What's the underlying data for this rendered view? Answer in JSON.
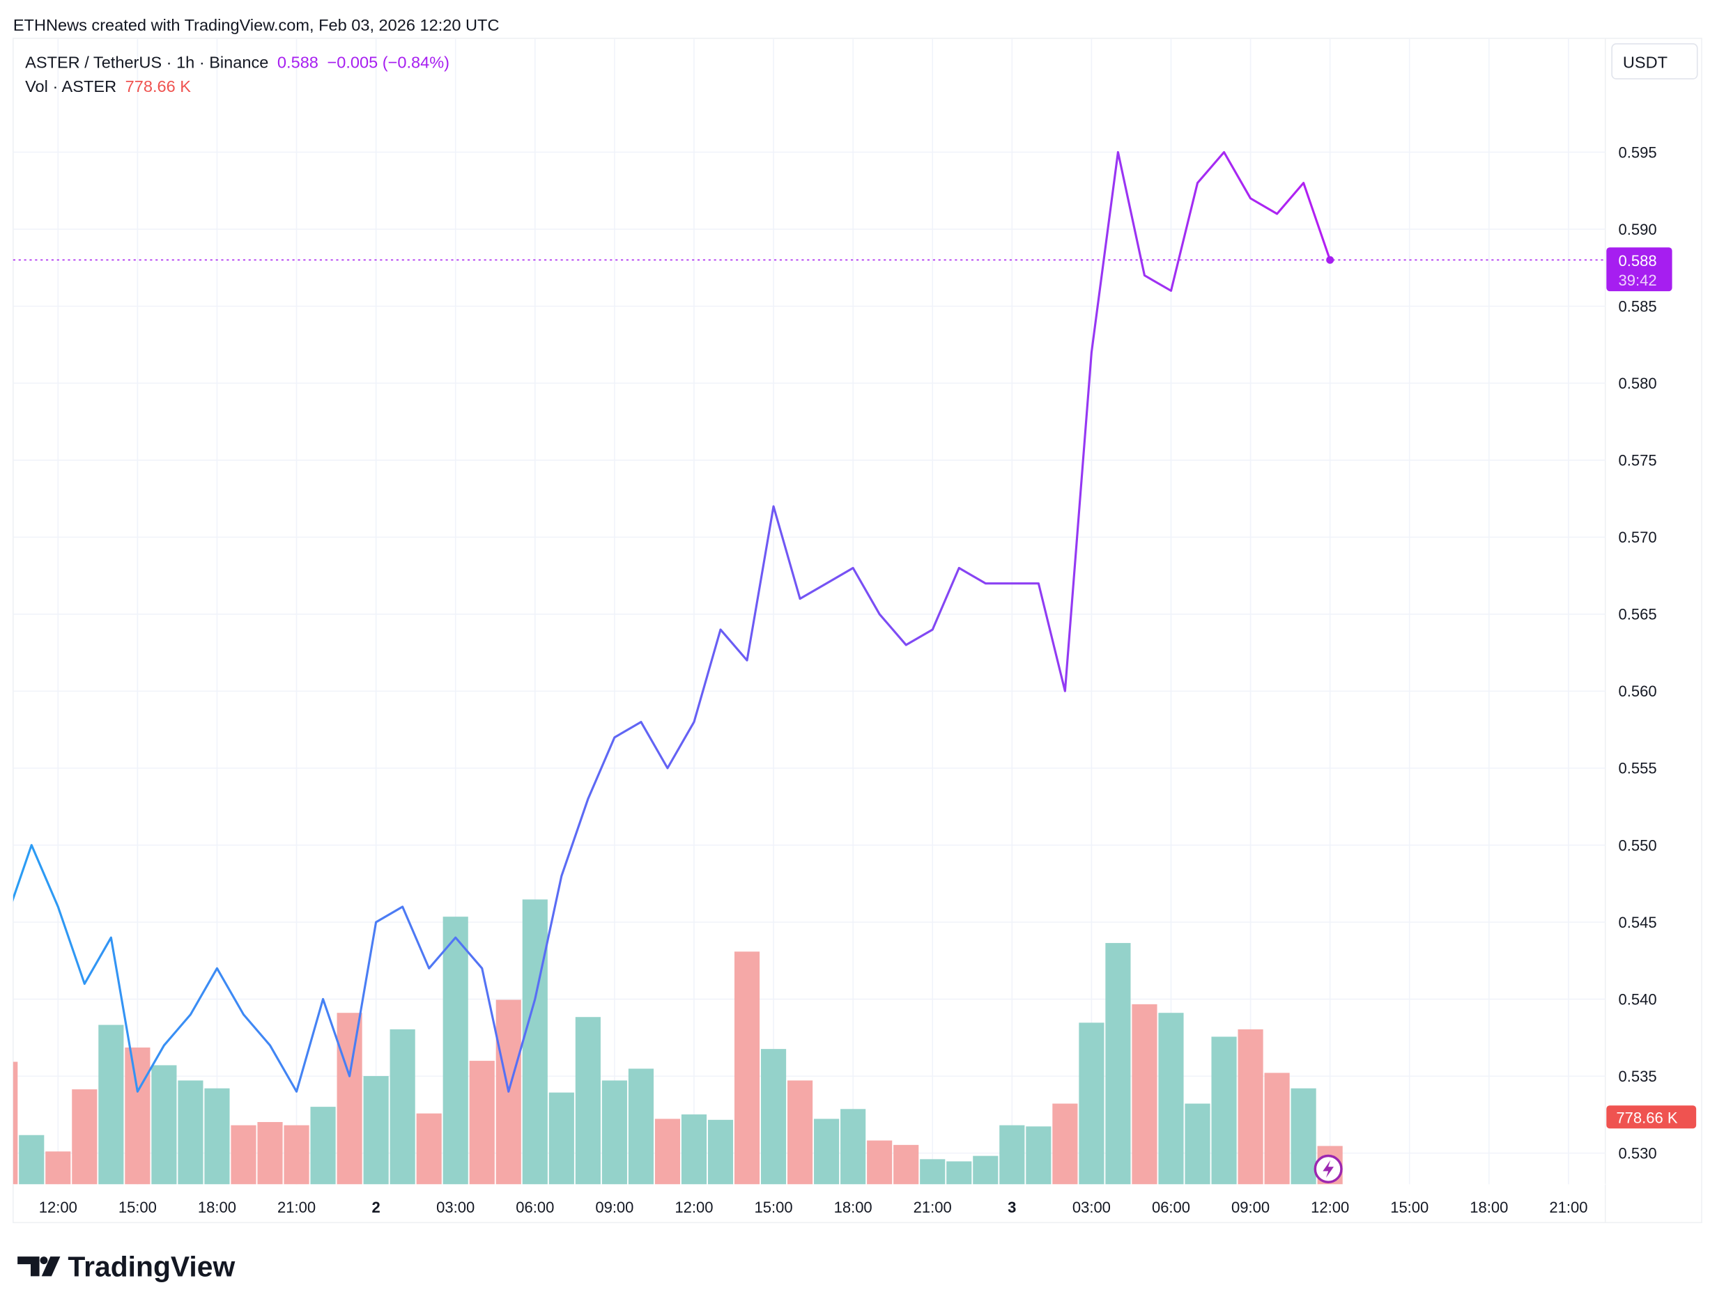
{
  "header": {
    "attribution": "ETHNews created with TradingView.com, Feb 03, 2026 12:20 UTC",
    "symbol_line": "ASTER / TetherUS · 1h · Binance",
    "last_price": "0.588",
    "change": "−0.005 (−0.84%)",
    "volume_label": "Vol · ASTER",
    "volume_value": "778.66 K"
  },
  "currency_button": "USDT",
  "price_label": {
    "value": "0.588",
    "countdown": "39:42"
  },
  "volume_label_tag": "778.66 K",
  "logo_text": "TradingView",
  "colors": {
    "line_start": "#2a9df4",
    "line_mid": "#6a5cf4",
    "line_end": "#b31ef2",
    "price_tag": "#a61ef0",
    "volume_up": "#94d2ca",
    "volume_down": "#f5a8a7",
    "volume_tag": "#ef5350"
  },
  "chart_data": {
    "type": "line",
    "title": "ASTER / TetherUS · 1h · Binance",
    "x_unit": "hour index from Feb 1 00:00 UTC",
    "x_ticks": [
      {
        "hour": 12,
        "label": "12:00"
      },
      {
        "hour": 15,
        "label": "15:00"
      },
      {
        "hour": 18,
        "label": "18:00"
      },
      {
        "hour": 21,
        "label": "21:00"
      },
      {
        "hour": 24,
        "label": "2",
        "bold": true
      },
      {
        "hour": 27,
        "label": "03:00"
      },
      {
        "hour": 30,
        "label": "06:00"
      },
      {
        "hour": 33,
        "label": "09:00"
      },
      {
        "hour": 36,
        "label": "12:00"
      },
      {
        "hour": 39,
        "label": "15:00"
      },
      {
        "hour": 42,
        "label": "18:00"
      },
      {
        "hour": 45,
        "label": "21:00"
      },
      {
        "hour": 48,
        "label": "3",
        "bold": true
      },
      {
        "hour": 51,
        "label": "03:00"
      },
      {
        "hour": 54,
        "label": "06:00"
      },
      {
        "hour": 57,
        "label": "09:00"
      },
      {
        "hour": 60,
        "label": "12:00"
      },
      {
        "hour": 63,
        "label": "15:00"
      },
      {
        "hour": 66,
        "label": "18:00"
      },
      {
        "hour": 69,
        "label": "21:00"
      }
    ],
    "y_ticks": [
      "0.595",
      "0.590",
      "0.585",
      "0.580",
      "0.575",
      "0.570",
      "0.565",
      "0.560",
      "0.555",
      "0.550",
      "0.545",
      "0.540",
      "0.535",
      "0.530"
    ],
    "ylim": [
      0.5275,
      0.6
    ],
    "start_hour": 10,
    "close": [
      0.545,
      0.55,
      0.546,
      0.541,
      0.544,
      0.534,
      0.537,
      0.539,
      0.542,
      0.539,
      0.537,
      0.534,
      0.54,
      0.535,
      0.545,
      0.546,
      0.542,
      0.544,
      0.542,
      0.534,
      0.54,
      0.548,
      0.553,
      0.557,
      0.558,
      0.555,
      0.558,
      0.564,
      0.562,
      0.572,
      0.566,
      0.567,
      0.568,
      0.565,
      0.563,
      0.564,
      0.568,
      0.567,
      0.567,
      0.567,
      0.56,
      0.582,
      0.595,
      0.587,
      0.586,
      0.593,
      0.595,
      0.592,
      0.591,
      0.593,
      0.588
    ],
    "volume_k": [
      2490,
      1000,
      667,
      1930,
      3240,
      2780,
      2420,
      2110,
      1950,
      1200,
      1265,
      1200,
      1575,
      3485,
      2200,
      3150,
      1440,
      5440,
      2510,
      3750,
      5790,
      1865,
      3400,
      2110,
      2350,
      1330,
      1420,
      1310,
      4730,
      2750,
      2110,
      1330,
      1530,
      890,
      800,
      510,
      466,
      577,
      1200,
      1176,
      1640,
      3285,
      4905,
      3660,
      3485,
      1640,
      3000,
      3150,
      2265,
      1950,
      778.66
    ],
    "volume_up": [
      false,
      true,
      false,
      false,
      true,
      false,
      true,
      true,
      true,
      false,
      false,
      false,
      true,
      false,
      true,
      true,
      false,
      true,
      false,
      false,
      true,
      true,
      true,
      true,
      true,
      false,
      true,
      true,
      false,
      true,
      false,
      true,
      true,
      false,
      false,
      true,
      true,
      true,
      true,
      true,
      false,
      true,
      true,
      false,
      true,
      true,
      true,
      false,
      false,
      true,
      false
    ],
    "grid": true
  }
}
